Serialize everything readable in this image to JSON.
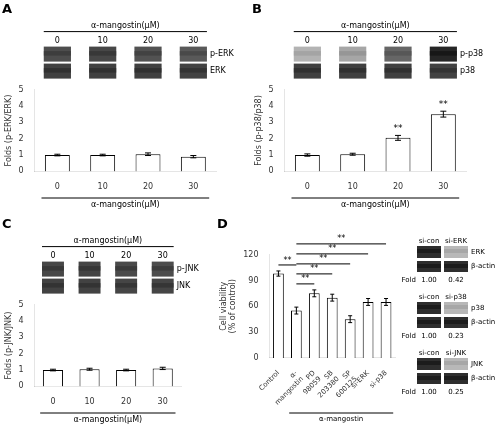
{
  "chart_data": [
    {
      "type": "bar",
      "title": "A",
      "categories": [
        "0",
        "10",
        "20",
        "30"
      ],
      "values": [
        1.0,
        1.0,
        1.05,
        0.9
      ],
      "errors": [
        0.05,
        0.05,
        0.08,
        0.07
      ],
      "ylabel": "Folds (p-ERK/ERK)",
      "xlabel": "α-mangostin(μM)",
      "header": "α-mangostin(μM)",
      "ylim": [
        0,
        5
      ],
      "yticks": [
        0,
        1,
        2,
        3,
        4,
        5
      ],
      "color": "#ffffff",
      "edge_color": "#000000",
      "grid": false,
      "blots": [
        {
          "label": "p-ERK",
          "intensities": [
            0.7,
            0.72,
            0.68,
            0.65
          ]
        },
        {
          "label": "ERK",
          "intensities": [
            0.75,
            0.75,
            0.75,
            0.74
          ]
        }
      ]
    },
    {
      "type": "bar",
      "title": "B",
      "categories": [
        "0",
        "10",
        "20",
        "30"
      ],
      "values": [
        1.0,
        1.05,
        2.05,
        3.5
      ],
      "errors": [
        0.07,
        0.06,
        0.15,
        0.18
      ],
      "sig_marks": [
        null,
        null,
        "**",
        "**"
      ],
      "ylabel": "Folds (p-p38/p38)",
      "xlabel": "α-mangostin(μM)",
      "header": "α-mangostin(μM)",
      "ylim": [
        0,
        5
      ],
      "yticks": [
        0,
        1,
        2,
        3,
        4,
        5
      ],
      "color": "#ffffff",
      "edge_color": "#000000",
      "grid": false,
      "blots": [
        {
          "label": "p-p38",
          "intensities": [
            0.3,
            0.35,
            0.6,
            0.85
          ]
        },
        {
          "label": "p38",
          "intensities": [
            0.75,
            0.75,
            0.75,
            0.74
          ]
        }
      ]
    },
    {
      "type": "bar",
      "title": "C",
      "categories": [
        "0",
        "10",
        "20",
        "30"
      ],
      "values": [
        1.0,
        1.05,
        1.0,
        1.1
      ],
      "errors": [
        0.05,
        0.06,
        0.05,
        0.07
      ],
      "ylabel": "Folds (p-JNK/JNK)",
      "xlabel": "α-mangostin(μM)",
      "header": "α-mangostin(μM)",
      "ylim": [
        0,
        5
      ],
      "yticks": [
        0,
        1,
        2,
        3,
        4,
        5
      ],
      "color": "#ffffff",
      "edge_color": "#000000",
      "grid": false,
      "blots": [
        {
          "label": "p-JNK",
          "intensities": [
            0.72,
            0.73,
            0.71,
            0.7
          ]
        },
        {
          "label": "JNK",
          "intensities": [
            0.74,
            0.74,
            0.73,
            0.73
          ]
        }
      ]
    },
    {
      "type": "bar",
      "title": "D",
      "categories": [
        "Control",
        "α-\nmangostin",
        "PD\n98059",
        "SB\n203380",
        "SP\n600125",
        "si-ERK",
        "si-p38"
      ],
      "values": [
        98,
        55,
        75,
        70,
        45,
        65,
        65
      ],
      "errors": [
        3,
        4,
        4,
        4,
        4,
        4,
        4
      ],
      "ylabel": "Cell viability\n(% of control)",
      "xlabel": "α-mangostin",
      "ylim": [
        0,
        120
      ],
      "yticks": [
        0,
        30,
        60,
        90,
        120
      ],
      "color": "#ffffff",
      "edge_color": "#000000",
      "grid": false,
      "brackets": [
        {
          "from": 0,
          "to": 1,
          "label": "**"
        },
        {
          "from": 1,
          "to": 2,
          "label": "**"
        },
        {
          "from": 1,
          "to": 3,
          "label": "**"
        },
        {
          "from": 1,
          "to": 4,
          "label": "**"
        },
        {
          "from": 1,
          "to": 5,
          "label": "**"
        },
        {
          "from": 1,
          "to": 6,
          "label": "**"
        }
      ],
      "reference_label": "β-actin",
      "fold_label": "Fold",
      "si_groups": [
        {
          "header": "si-con",
          "si_label": "si-ERK",
          "protein": "ERK",
          "fold_con": "1.00",
          "fold_si": "0.42"
        },
        {
          "header": "si-con",
          "si_label": "si-p38",
          "protein": "p38",
          "fold_con": "1.00",
          "fold_si": "0.23"
        },
        {
          "header": "si-con",
          "si_label": "si-JNK",
          "protein": "JNK",
          "fold_con": "1.00",
          "fold_si": "0.25"
        }
      ]
    }
  ]
}
